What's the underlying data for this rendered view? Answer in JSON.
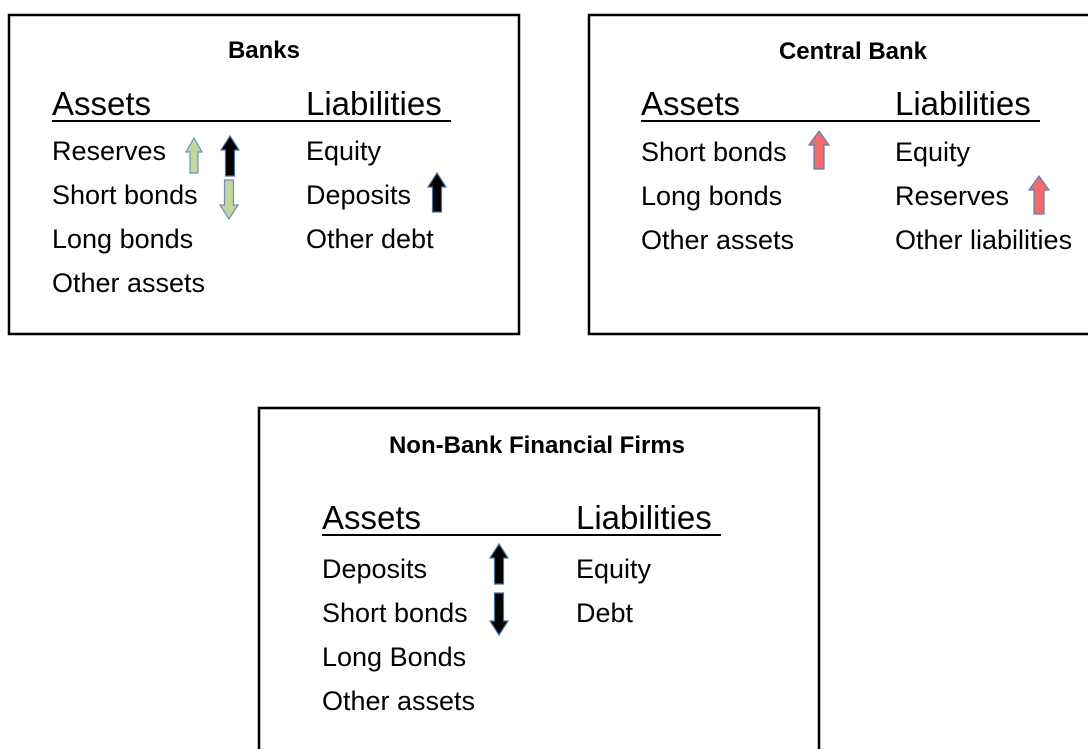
{
  "panels": [
    {
      "title": "Banks",
      "assets_heading": "Assets",
      "liabilities_heading": "Liabilities",
      "assets": [
        "Reserves",
        "Short bonds",
        "Long bonds",
        "Other assets"
      ],
      "liabilities": [
        "Equity",
        "Deposits",
        "Other debt"
      ]
    },
    {
      "title": "Central Bank",
      "assets_heading": "Assets",
      "liabilities_heading": "Liabilities",
      "assets": [
        "Short bonds",
        "Long bonds",
        "Other assets"
      ],
      "liabilities": [
        "Equity",
        "Reserves",
        "Other liabilities"
      ]
    },
    {
      "title": "Non-Bank Financial Firms",
      "assets_heading": "Assets",
      "liabilities_heading": "Liabilities",
      "assets": [
        "Deposits",
        "Short bonds",
        "Long Bonds",
        "Other assets"
      ],
      "liabilities": [
        "Equity",
        "Debt"
      ]
    }
  ]
}
